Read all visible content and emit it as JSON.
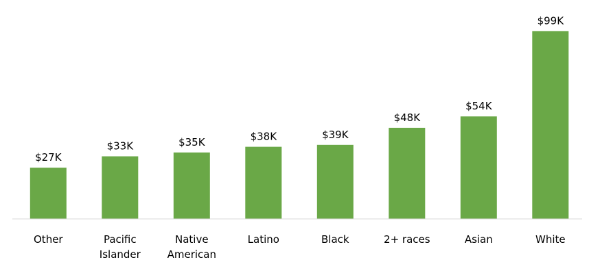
{
  "chart_data": {
    "type": "bar",
    "categories": [
      "Other",
      "Pacific\nIslander",
      "Native\nAmerican",
      "Latino",
      "Black",
      "2+ races",
      "Asian",
      "White"
    ],
    "values": [
      27,
      33,
      35,
      38,
      39,
      48,
      54,
      99
    ],
    "data_labels": [
      "$27K",
      "$33K",
      "$35K",
      "$38K",
      "$39K",
      "$48K",
      "$54K",
      "$99K"
    ],
    "unit": "$K",
    "title": "",
    "xlabel": "",
    "ylabel": "",
    "ylim": [
      0,
      100
    ],
    "grid": false,
    "legend": "none",
    "bar_color": "#6aa847"
  }
}
